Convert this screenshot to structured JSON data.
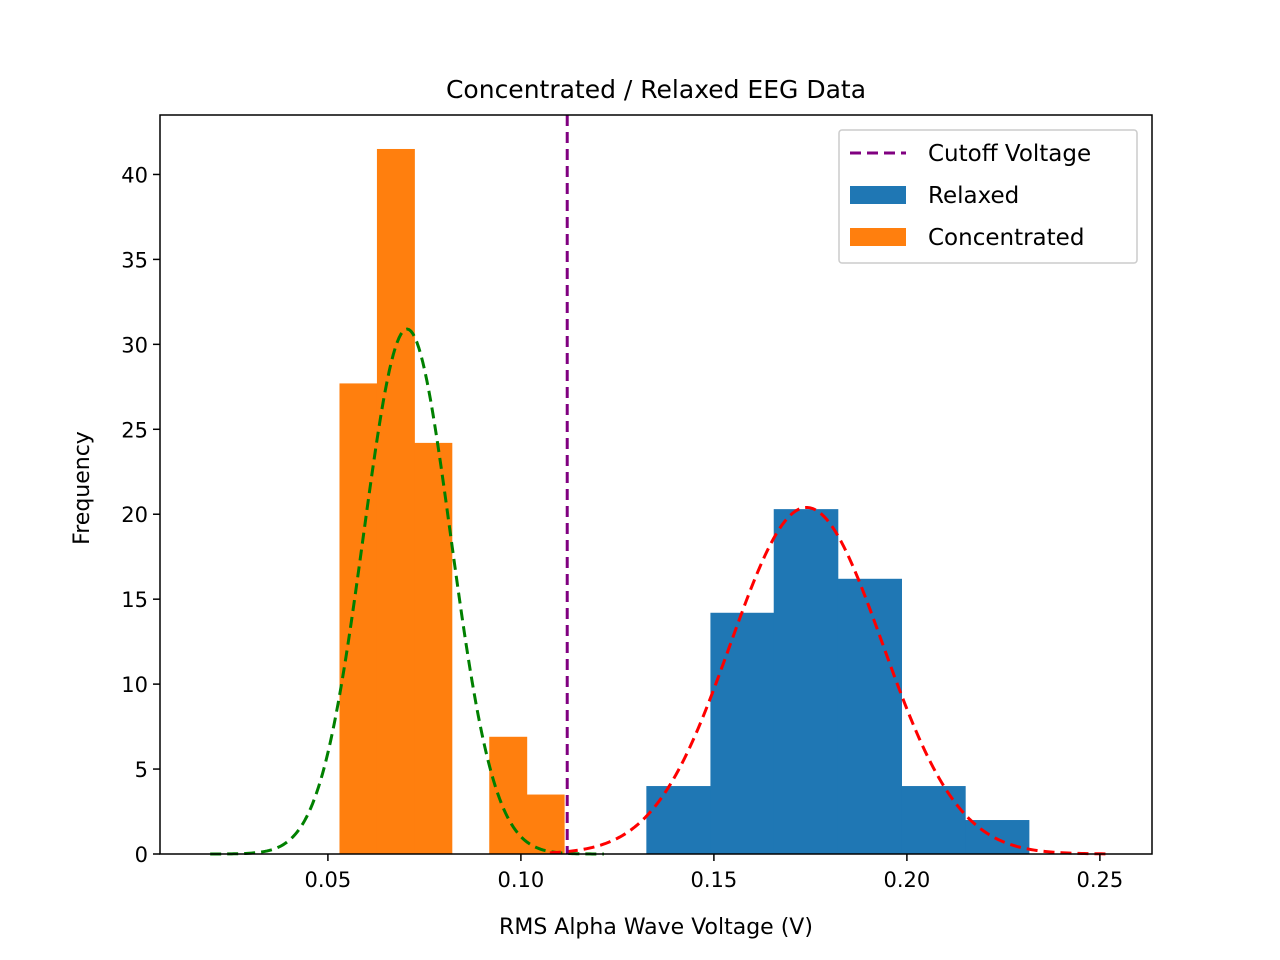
{
  "chart_data": {
    "type": "histogram",
    "title": "Concentrated / Relaxed EEG Data",
    "xlabel": "RMS Alpha Wave Voltage (V)",
    "ylabel": "Frequency",
    "xlim": [
      0.0065,
      0.2635
    ],
    "ylim": [
      0,
      43.5
    ],
    "xticks": [
      0.05,
      0.1,
      0.15,
      0.2,
      0.25
    ],
    "xtick_labels": [
      "0.05",
      "0.10",
      "0.15",
      "0.20",
      "0.25"
    ],
    "yticks": [
      0,
      5,
      10,
      15,
      20,
      25,
      30,
      35,
      40
    ],
    "ytick_labels": [
      "0",
      "5",
      "10",
      "15",
      "20",
      "25",
      "30",
      "35",
      "40"
    ],
    "grid": false,
    "legend_position": "top-right",
    "legend": [
      "Cutoff Voltage",
      "Relaxed",
      "Concentrated"
    ],
    "cutoff": {
      "name": "Cutoff Voltage",
      "x": 0.112,
      "color": "#800080"
    },
    "histograms": [
      {
        "name": "Relaxed",
        "color": "#1f77b4",
        "bins": [
          {
            "x0": 0.1325,
            "x1": 0.1491,
            "value": 4.0
          },
          {
            "x0": 0.1491,
            "x1": 0.1655,
            "value": 14.2
          },
          {
            "x0": 0.1655,
            "x1": 0.1821,
            "value": 20.3
          },
          {
            "x0": 0.1821,
            "x1": 0.1986,
            "value": 16.2
          },
          {
            "x0": 0.1986,
            "x1": 0.2151,
            "value": 4.0
          },
          {
            "x0": 0.2151,
            "x1": 0.2316,
            "value": 2.0
          }
        ]
      },
      {
        "name": "Concentrated",
        "color": "#ff7f0e",
        "bins": [
          {
            "x0": 0.053,
            "x1": 0.0627,
            "value": 27.7
          },
          {
            "x0": 0.0627,
            "x1": 0.0724,
            "value": 41.5
          },
          {
            "x0": 0.0724,
            "x1": 0.0821,
            "value": 24.2
          },
          {
            "x0": 0.0821,
            "x1": 0.0918,
            "value": 0
          },
          {
            "x0": 0.0918,
            "x1": 0.1015,
            "value": 6.9
          },
          {
            "x0": 0.1015,
            "x1": 0.1112,
            "value": 3.5
          }
        ]
      }
    ],
    "fits": [
      {
        "name": "Concentrated fit",
        "mean": 0.0705,
        "sigma": 0.0113,
        "peak": 30.9,
        "x_range": [
          0.0195,
          0.1215
        ],
        "color": "#008000"
      },
      {
        "name": "Relaxed fit",
        "mean": 0.174,
        "sigma": 0.0197,
        "peak": 20.4,
        "x_range": [
          0.1075,
          0.2525
        ],
        "color": "#ff0000"
      }
    ]
  }
}
